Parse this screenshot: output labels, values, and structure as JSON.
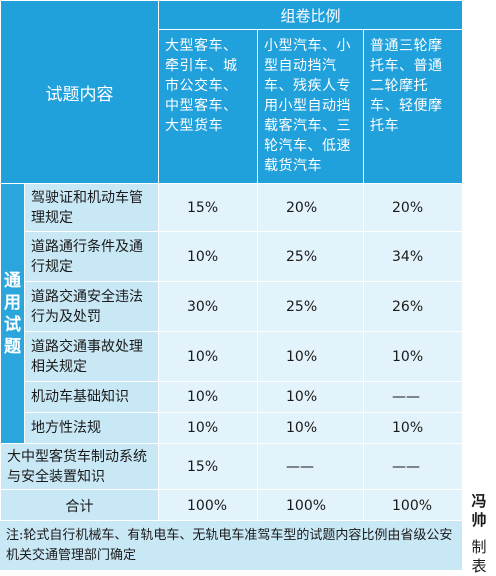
{
  "header": {
    "group_title": "组卷比例",
    "content_label": "试题内容",
    "col1": "大型客车、牵引车、城市公交车、中型客车、大型货车",
    "col2": "小型汽车、小型自动挡汽车、残疾人专用小型自动挡载客汽车、三轮汽车、低速载货汽车",
    "col3": "普通三轮摩托车、普通二轮摩托车、轻便摩托车"
  },
  "category": "通用试题",
  "rows": [
    {
      "label": "驾驶证和机动车管理规定",
      "v1": "15%",
      "v2": "20%",
      "v3": "20%"
    },
    {
      "label": "道路通行条件及通行规定",
      "v1": "10%",
      "v2": "25%",
      "v3": "34%"
    },
    {
      "label": "道路交通安全违法行为及处罚",
      "v1": "30%",
      "v2": "25%",
      "v3": "26%"
    },
    {
      "label": "道路交通事故处理相关规定",
      "v1": "10%",
      "v2": "10%",
      "v3": "10%"
    },
    {
      "label": "机动车基础知识",
      "v1": "10%",
      "v2": "10%",
      "v3": "——"
    },
    {
      "label": "地方性法规",
      "v1": "10%",
      "v2": "10%",
      "v3": "10%"
    }
  ],
  "extra_row": {
    "label": "大中型客货车制动系统与安全装置知识",
    "v1": "15%",
    "v2": "——",
    "v3": "——"
  },
  "total_row": {
    "label": "合计",
    "v1": "100%",
    "v2": "100%",
    "v3": "100%"
  },
  "note": "注:轮式自行机械车、有轨电车、无轨电车准驾车型的试题内容比例由省级公安机关交通管理部门确定",
  "credit": {
    "name": "冯帅",
    "suffix": "制表"
  }
}
